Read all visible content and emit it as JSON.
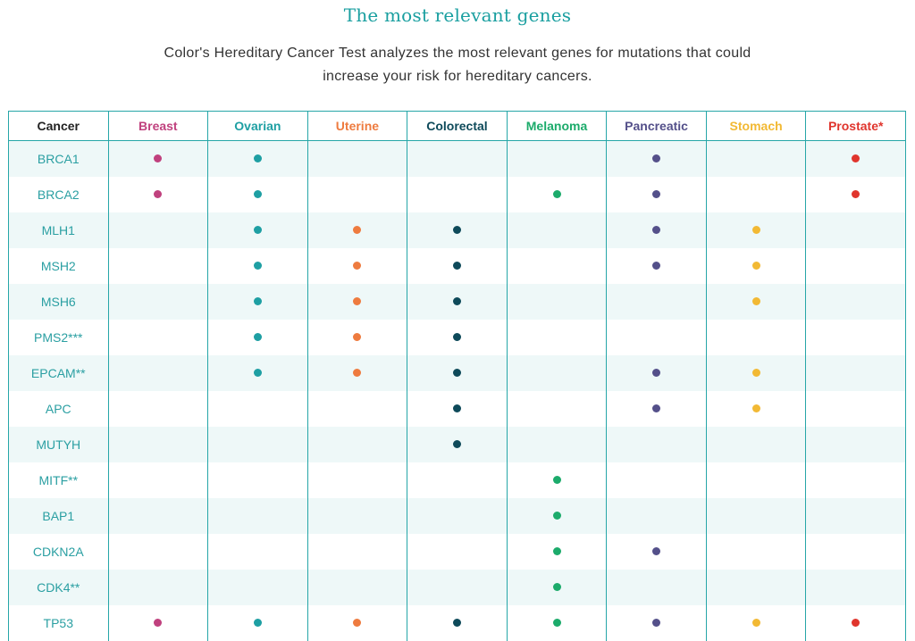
{
  "title": "The most relevant genes",
  "description": {
    "line1": "Color's Hereditary Cancer Test analyzes the most relevant genes for mutations that could",
    "line2": "increase your risk for hereditary cancers."
  },
  "table": {
    "header_label": "Cancer",
    "columns": [
      {
        "name": "Breast",
        "color": "#c0417e"
      },
      {
        "name": "Ovarian",
        "color": "#1e9fa3"
      },
      {
        "name": "Uterine",
        "color": "#ee7b3f"
      },
      {
        "name": "Colorectal",
        "color": "#0e4a5a"
      },
      {
        "name": "Melanoma",
        "color": "#1cab6b"
      },
      {
        "name": "Pancreatic",
        "color": "#54508a"
      },
      {
        "name": "Stomach",
        "color": "#f2b934"
      },
      {
        "name": "Prostate*",
        "color": "#e0352d"
      }
    ],
    "rows": [
      {
        "gene": "BRCA1",
        "marks": [
          1,
          1,
          0,
          0,
          0,
          1,
          0,
          1
        ]
      },
      {
        "gene": "BRCA2",
        "marks": [
          1,
          1,
          0,
          0,
          1,
          1,
          0,
          1
        ]
      },
      {
        "gene": "MLH1",
        "marks": [
          0,
          1,
          1,
          1,
          0,
          1,
          1,
          0
        ]
      },
      {
        "gene": "MSH2",
        "marks": [
          0,
          1,
          1,
          1,
          0,
          1,
          1,
          0
        ]
      },
      {
        "gene": "MSH6",
        "marks": [
          0,
          1,
          1,
          1,
          0,
          0,
          1,
          0
        ]
      },
      {
        "gene": "PMS2***",
        "marks": [
          0,
          1,
          1,
          1,
          0,
          0,
          0,
          0
        ]
      },
      {
        "gene": "EPCAM**",
        "marks": [
          0,
          1,
          1,
          1,
          0,
          1,
          1,
          0
        ]
      },
      {
        "gene": "APC",
        "marks": [
          0,
          0,
          0,
          1,
          0,
          1,
          1,
          0
        ]
      },
      {
        "gene": "MUTYH",
        "marks": [
          0,
          0,
          0,
          1,
          0,
          0,
          0,
          0
        ]
      },
      {
        "gene": "MITF**",
        "marks": [
          0,
          0,
          0,
          0,
          1,
          0,
          0,
          0
        ]
      },
      {
        "gene": "BAP1",
        "marks": [
          0,
          0,
          0,
          0,
          1,
          0,
          0,
          0
        ]
      },
      {
        "gene": "CDKN2A",
        "marks": [
          0,
          0,
          0,
          0,
          1,
          1,
          0,
          0
        ]
      },
      {
        "gene": "CDK4**",
        "marks": [
          0,
          0,
          0,
          0,
          1,
          0,
          0,
          0
        ]
      },
      {
        "gene": "TP53",
        "marks": [
          1,
          1,
          1,
          1,
          1,
          1,
          1,
          1
        ]
      }
    ]
  }
}
